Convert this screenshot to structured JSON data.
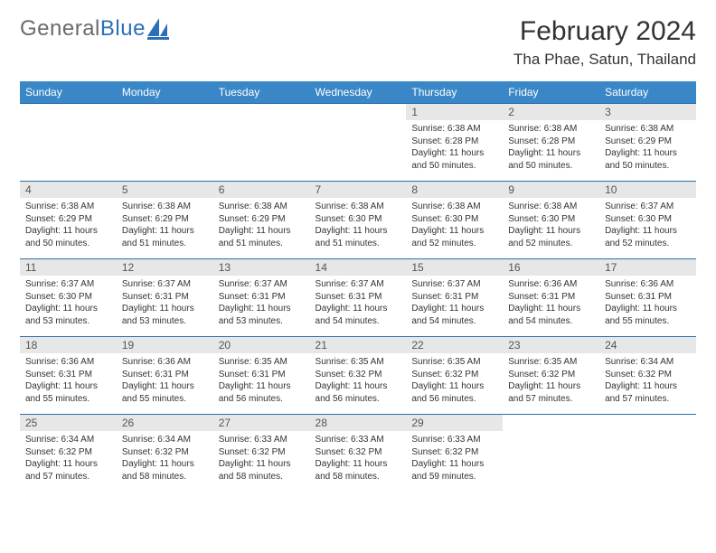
{
  "brand": {
    "part1": "General",
    "part2": "Blue"
  },
  "title": "February 2024",
  "location": "Tha Phae, Satun, Thailand",
  "colors": {
    "header_bg": "#3a87c7",
    "header_text": "#ffffff",
    "daynum_bg": "#e7e7e7",
    "cell_border": "#2d6fa8",
    "brand_gray": "#6a6a6a",
    "brand_blue": "#2d6fb6"
  },
  "weekdays": [
    "Sunday",
    "Monday",
    "Tuesday",
    "Wednesday",
    "Thursday",
    "Friday",
    "Saturday"
  ],
  "weeks": [
    [
      null,
      null,
      null,
      null,
      {
        "n": "1",
        "sunrise": "6:38 AM",
        "sunset": "6:28 PM",
        "daylight": "11 hours and 50 minutes."
      },
      {
        "n": "2",
        "sunrise": "6:38 AM",
        "sunset": "6:28 PM",
        "daylight": "11 hours and 50 minutes."
      },
      {
        "n": "3",
        "sunrise": "6:38 AM",
        "sunset": "6:29 PM",
        "daylight": "11 hours and 50 minutes."
      }
    ],
    [
      {
        "n": "4",
        "sunrise": "6:38 AM",
        "sunset": "6:29 PM",
        "daylight": "11 hours and 50 minutes."
      },
      {
        "n": "5",
        "sunrise": "6:38 AM",
        "sunset": "6:29 PM",
        "daylight": "11 hours and 51 minutes."
      },
      {
        "n": "6",
        "sunrise": "6:38 AM",
        "sunset": "6:29 PM",
        "daylight": "11 hours and 51 minutes."
      },
      {
        "n": "7",
        "sunrise": "6:38 AM",
        "sunset": "6:30 PM",
        "daylight": "11 hours and 51 minutes."
      },
      {
        "n": "8",
        "sunrise": "6:38 AM",
        "sunset": "6:30 PM",
        "daylight": "11 hours and 52 minutes."
      },
      {
        "n": "9",
        "sunrise": "6:38 AM",
        "sunset": "6:30 PM",
        "daylight": "11 hours and 52 minutes."
      },
      {
        "n": "10",
        "sunrise": "6:37 AM",
        "sunset": "6:30 PM",
        "daylight": "11 hours and 52 minutes."
      }
    ],
    [
      {
        "n": "11",
        "sunrise": "6:37 AM",
        "sunset": "6:30 PM",
        "daylight": "11 hours and 53 minutes."
      },
      {
        "n": "12",
        "sunrise": "6:37 AM",
        "sunset": "6:31 PM",
        "daylight": "11 hours and 53 minutes."
      },
      {
        "n": "13",
        "sunrise": "6:37 AM",
        "sunset": "6:31 PM",
        "daylight": "11 hours and 53 minutes."
      },
      {
        "n": "14",
        "sunrise": "6:37 AM",
        "sunset": "6:31 PM",
        "daylight": "11 hours and 54 minutes."
      },
      {
        "n": "15",
        "sunrise": "6:37 AM",
        "sunset": "6:31 PM",
        "daylight": "11 hours and 54 minutes."
      },
      {
        "n": "16",
        "sunrise": "6:36 AM",
        "sunset": "6:31 PM",
        "daylight": "11 hours and 54 minutes."
      },
      {
        "n": "17",
        "sunrise": "6:36 AM",
        "sunset": "6:31 PM",
        "daylight": "11 hours and 55 minutes."
      }
    ],
    [
      {
        "n": "18",
        "sunrise": "6:36 AM",
        "sunset": "6:31 PM",
        "daylight": "11 hours and 55 minutes."
      },
      {
        "n": "19",
        "sunrise": "6:36 AM",
        "sunset": "6:31 PM",
        "daylight": "11 hours and 55 minutes."
      },
      {
        "n": "20",
        "sunrise": "6:35 AM",
        "sunset": "6:31 PM",
        "daylight": "11 hours and 56 minutes."
      },
      {
        "n": "21",
        "sunrise": "6:35 AM",
        "sunset": "6:32 PM",
        "daylight": "11 hours and 56 minutes."
      },
      {
        "n": "22",
        "sunrise": "6:35 AM",
        "sunset": "6:32 PM",
        "daylight": "11 hours and 56 minutes."
      },
      {
        "n": "23",
        "sunrise": "6:35 AM",
        "sunset": "6:32 PM",
        "daylight": "11 hours and 57 minutes."
      },
      {
        "n": "24",
        "sunrise": "6:34 AM",
        "sunset": "6:32 PM",
        "daylight": "11 hours and 57 minutes."
      }
    ],
    [
      {
        "n": "25",
        "sunrise": "6:34 AM",
        "sunset": "6:32 PM",
        "daylight": "11 hours and 57 minutes."
      },
      {
        "n": "26",
        "sunrise": "6:34 AM",
        "sunset": "6:32 PM",
        "daylight": "11 hours and 58 minutes."
      },
      {
        "n": "27",
        "sunrise": "6:33 AM",
        "sunset": "6:32 PM",
        "daylight": "11 hours and 58 minutes."
      },
      {
        "n": "28",
        "sunrise": "6:33 AM",
        "sunset": "6:32 PM",
        "daylight": "11 hours and 58 minutes."
      },
      {
        "n": "29",
        "sunrise": "6:33 AM",
        "sunset": "6:32 PM",
        "daylight": "11 hours and 59 minutes."
      },
      null,
      null
    ]
  ],
  "labels": {
    "sunrise": "Sunrise:",
    "sunset": "Sunset:",
    "daylight": "Daylight:"
  }
}
